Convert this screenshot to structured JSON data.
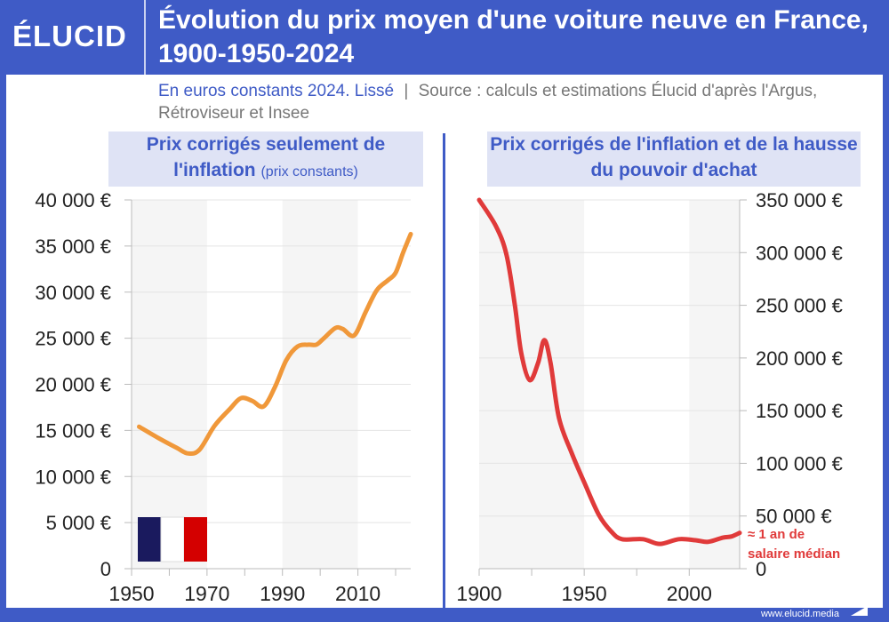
{
  "header": {
    "logo": "ÉLUCID",
    "title": "Évolution du prix moyen d'une voiture neuve en France, 1900-1950-2024"
  },
  "subtitle": {
    "part1": "En euros constants 2024. Lissé",
    "separator": "|",
    "part2": "Source : calculs et estimations Élucid d'après l'Argus, Rétroviseur et Insee"
  },
  "footer": "www.elucid.media",
  "colors": {
    "brand": "#3f5bc6",
    "left_line": "#f0983a",
    "right_line": "#e03a3a"
  },
  "chart_data": [
    {
      "type": "line",
      "title_main": "Prix corrigés seulement de l'inflation",
      "title_note": "(prix constants)",
      "xlim": [
        1950,
        2024
      ],
      "ylim": [
        0,
        40000
      ],
      "grid": true,
      "y_axis": "left",
      "xticks": [
        1950,
        1970,
        1990,
        2010
      ],
      "yticks": [
        "0",
        "5 000 €",
        "10 000 €",
        "15 000 €",
        "20 000 €",
        "25 000 €",
        "30 000 €",
        "35 000 €",
        "40 000 €"
      ],
      "icon": "france-flag",
      "x": [
        1952,
        1957,
        1962,
        1965,
        1968,
        1972,
        1976,
        1979,
        1982,
        1985,
        1988,
        1991,
        1994,
        1997,
        1999,
        2001,
        2004,
        2006,
        2009,
        2012,
        2015,
        2018,
        2020,
        2022,
        2024
      ],
      "y": [
        15400,
        14200,
        13100,
        12500,
        12900,
        15500,
        17300,
        18500,
        18200,
        17600,
        19700,
        22600,
        24100,
        24300,
        24300,
        25000,
        26100,
        26000,
        25300,
        27800,
        30200,
        31300,
        32100,
        34300,
        36300
      ]
    },
    {
      "type": "line",
      "title_main": "Prix corrigés de l'inflation et de la hausse du pouvoir d'achat",
      "xlim": [
        1900,
        2024
      ],
      "ylim": [
        0,
        350000
      ],
      "grid": true,
      "y_axis": "right",
      "xticks": [
        1900,
        1950,
        2000
      ],
      "yticks": [
        "0",
        "50 000 €",
        "100 000 €",
        "150 000 €",
        "200 000 €",
        "250 000 €",
        "300 000 €",
        "350 000 €"
      ],
      "annotation": "≈ 1 an de salaire médian",
      "x": [
        1900,
        1908,
        1913,
        1917,
        1920,
        1924,
        1928,
        1931,
        1934,
        1938,
        1944,
        1950,
        1957,
        1963,
        1968,
        1978,
        1986,
        1995,
        2003,
        2009,
        2016,
        2020,
        2024
      ],
      "y": [
        350000,
        325000,
        298000,
        250000,
        205000,
        179000,
        195000,
        217000,
        195000,
        143000,
        110000,
        82000,
        51000,
        35000,
        28000,
        28000,
        23500,
        28000,
        27000,
        25500,
        29500,
        30500,
        34000
      ]
    }
  ]
}
